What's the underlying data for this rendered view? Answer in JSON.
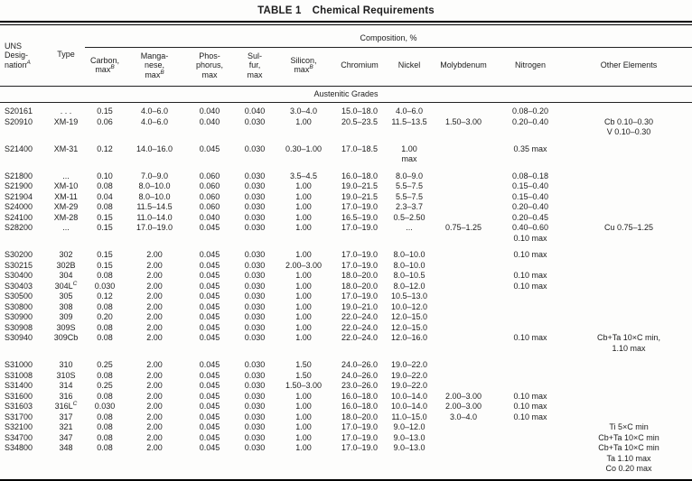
{
  "title": {
    "label": "TABLE 1",
    "text": "Chemical Requirements"
  },
  "composition_header": "Composition, %",
  "section_header": "Austenitic Grades",
  "columns": {
    "uns": {
      "l1": "UNS",
      "l2": "Desig-",
      "l3": "nation",
      "sup": "A"
    },
    "type": {
      "l1": "Type"
    },
    "carbon": {
      "l1": "Carbon,",
      "l2": "max",
      "sup": "B"
    },
    "manganese": {
      "l1": "Manga-",
      "l2": "nese,",
      "l3": "max",
      "sup": "B"
    },
    "phosphorus": {
      "l1": "Phos-",
      "l2": "phorus,",
      "l3": "max"
    },
    "sulfur": {
      "l1": "Sul-",
      "l2": "fur,",
      "l3": "max"
    },
    "silicon": {
      "l1": "Silicon,",
      "l2": "max",
      "sup": "B"
    },
    "chromium": {
      "l1": "Chromium"
    },
    "nickel": {
      "l1": "Nickel"
    },
    "molybdenum": {
      "l1": "Molybdenum"
    },
    "nitrogen": {
      "l1": "Nitrogen"
    },
    "other": {
      "l1": "Other Elements"
    }
  },
  "rows": [
    {
      "uns": "S20161",
      "type": ". . .",
      "c": "0.15",
      "mn": "4.0–6.0",
      "p": "0.040",
      "s": "0.040",
      "si": "3.0–4.0",
      "cr": "15.0–18.0",
      "ni": "4.0–6.0",
      "mo": "",
      "n": "0.08–0.20",
      "other": "",
      "gap": false
    },
    {
      "uns": "S20910",
      "type": "XM-19",
      "c": "0.06",
      "mn": "4.0–6.0",
      "p": "0.040",
      "s": "0.030",
      "si": "1.00",
      "cr": "20.5–23.5",
      "ni": "11.5–13.5",
      "mo": "1.50–3.00",
      "n": "0.20–0.40",
      "other": "Cb 0.10–0.30\nV 0.10–0.30",
      "gap": false
    },
    {
      "uns": "S21400",
      "type": "XM-31",
      "c": "0.12",
      "mn": "14.0–16.0",
      "p": "0.045",
      "s": "0.030",
      "si": "0.30–1.00",
      "cr": "17.0–18.5",
      "ni": "1.00\nmax",
      "mo": "",
      "n": "0.35 max",
      "other": "",
      "gap": true
    },
    {
      "uns": "S21800",
      "type": "...",
      "c": "0.10",
      "mn": "7.0–9.0",
      "p": "0.060",
      "s": "0.030",
      "si": "3.5–4.5",
      "cr": "16.0–18.0",
      "ni": "8.0–9.0",
      "mo": "",
      "n": "0.08–0.18",
      "other": "",
      "gap": true
    },
    {
      "uns": "S21900",
      "type": "XM-10",
      "c": "0.08",
      "mn": "8.0–10.0",
      "p": "0.060",
      "s": "0.030",
      "si": "1.00",
      "cr": "19.0–21.5",
      "ni": "5.5–7.5",
      "mo": "",
      "n": "0.15–0.40",
      "other": "",
      "gap": false
    },
    {
      "uns": "S21904",
      "type": "XM-11",
      "c": "0.04",
      "mn": "8.0–10.0",
      "p": "0.060",
      "s": "0.030",
      "si": "1.00",
      "cr": "19.0–21.5",
      "ni": "5.5–7.5",
      "mo": "",
      "n": "0.15–0.40",
      "other": "",
      "gap": false
    },
    {
      "uns": "S24000",
      "type": "XM-29",
      "c": "0.08",
      "mn": "11.5–14.5",
      "p": "0.060",
      "s": "0.030",
      "si": "1.00",
      "cr": "17.0–19.0",
      "ni": "2.3–3.7",
      "mo": "",
      "n": "0.20–0.40",
      "other": "",
      "gap": false
    },
    {
      "uns": "S24100",
      "type": "XM-28",
      "c": "0.15",
      "mn": "11.0–14.0",
      "p": "0.040",
      "s": "0.030",
      "si": "1.00",
      "cr": "16.5–19.0",
      "ni": "0.5–2.50",
      "mo": "",
      "n": "0.20–0.45",
      "other": "",
      "gap": false
    },
    {
      "uns": "S28200",
      "type": "...",
      "c": "0.15",
      "mn": "17.0–19.0",
      "p": "0.045",
      "s": "0.030",
      "si": "1.00",
      "cr": "17.0–19.0",
      "ni": "...",
      "mo": "0.75–1.25",
      "n": "0.40–0.60\n0.10 max",
      "other": "Cu 0.75–1.25",
      "gap": false
    },
    {
      "uns": "S30200",
      "type": "302",
      "c": "0.15",
      "mn": "2.00",
      "p": "0.045",
      "s": "0.030",
      "si": "1.00",
      "cr": "17.0–19.0",
      "ni": "8.0–10.0",
      "mo": "",
      "n": "0.10 max",
      "other": "",
      "gap": true
    },
    {
      "uns": "S30215",
      "type": "302B",
      "c": "0.15",
      "mn": "2.00",
      "p": "0.045",
      "s": "0.030",
      "si": "2.00–3.00",
      "cr": "17.0–19.0",
      "ni": "8.0–10.0",
      "mo": "",
      "n": "",
      "other": "",
      "gap": false
    },
    {
      "uns": "S30400",
      "type": "304",
      "c": "0.08",
      "mn": "2.00",
      "p": "0.045",
      "s": "0.030",
      "si": "1.00",
      "cr": "18.0–20.0",
      "ni": "8.0–10.5",
      "mo": "",
      "n": "0.10 max",
      "other": "",
      "gap": false
    },
    {
      "uns": "S30403",
      "type": "304L",
      "type_sup": "C",
      "c": "0.030",
      "mn": "2.00",
      "p": "0.045",
      "s": "0.030",
      "si": "1.00",
      "cr": "18.0–20.0",
      "ni": "8.0–12.0",
      "mo": "",
      "n": "0.10 max",
      "other": "",
      "gap": false
    },
    {
      "uns": "S30500",
      "type": "305",
      "c": "0.12",
      "mn": "2.00",
      "p": "0.045",
      "s": "0.030",
      "si": "1.00",
      "cr": "17.0–19.0",
      "ni": "10.5–13.0",
      "mo": "",
      "n": "",
      "other": "",
      "gap": false
    },
    {
      "uns": "S30800",
      "type": "308",
      "c": "0.08",
      "mn": "2.00",
      "p": "0.045",
      "s": "0.030",
      "si": "1.00",
      "cr": "19.0–21.0",
      "ni": "10.0–12.0",
      "mo": "",
      "n": "",
      "other": "",
      "gap": false
    },
    {
      "uns": "S30900",
      "type": "309",
      "c": "0.20",
      "mn": "2.00",
      "p": "0.045",
      "s": "0.030",
      "si": "1.00",
      "cr": "22.0–24.0",
      "ni": "12.0–15.0",
      "mo": "",
      "n": "",
      "other": "",
      "gap": false
    },
    {
      "uns": "S30908",
      "type": "309S",
      "c": "0.08",
      "mn": "2.00",
      "p": "0.045",
      "s": "0.030",
      "si": "1.00",
      "cr": "22.0–24.0",
      "ni": "12.0–15.0",
      "mo": "",
      "n": "",
      "other": "",
      "gap": false
    },
    {
      "uns": "S30940",
      "type": "309Cb",
      "c": "0.08",
      "mn": "2.00",
      "p": "0.045",
      "s": "0.030",
      "si": "1.00",
      "cr": "22.0–24.0",
      "ni": "12.0–16.0",
      "mo": "",
      "n": "0.10 max",
      "other": "Cb+Ta 10×C min,\n1.10 max",
      "gap": false
    },
    {
      "uns": "S31000",
      "type": "310",
      "c": "0.25",
      "mn": "2.00",
      "p": "0.045",
      "s": "0.030",
      "si": "1.50",
      "cr": "24.0–26.0",
      "ni": "19.0–22.0",
      "mo": "",
      "n": "",
      "other": "",
      "gap": true
    },
    {
      "uns": "S31008",
      "type": "310S",
      "c": "0.08",
      "mn": "2.00",
      "p": "0.045",
      "s": "0.030",
      "si": "1.50",
      "cr": "24.0–26.0",
      "ni": "19.0–22.0",
      "mo": "",
      "n": "",
      "other": "",
      "gap": false
    },
    {
      "uns": "S31400",
      "type": "314",
      "c": "0.25",
      "mn": "2.00",
      "p": "0.045",
      "s": "0.030",
      "si": "1.50–3.00",
      "cr": "23.0–26.0",
      "ni": "19.0–22.0",
      "mo": "",
      "n": "",
      "other": "",
      "gap": false
    },
    {
      "uns": "S31600",
      "type": "316",
      "c": "0.08",
      "mn": "2.00",
      "p": "0.045",
      "s": "0.030",
      "si": "1.00",
      "cr": "16.0–18.0",
      "ni": "10.0–14.0",
      "mo": "2.00–3.00",
      "n": "0.10 max",
      "other": "",
      "gap": false
    },
    {
      "uns": "S31603",
      "type": "316L",
      "type_sup": "C",
      "c": "0.030",
      "mn": "2.00",
      "p": "0.045",
      "s": "0.030",
      "si": "1.00",
      "cr": "16.0–18.0",
      "ni": "10.0–14.0",
      "mo": "2.00–3.00",
      "n": "0.10 max",
      "other": "",
      "gap": false
    },
    {
      "uns": "S31700",
      "type": "317",
      "c": "0.08",
      "mn": "2.00",
      "p": "0.045",
      "s": "0.030",
      "si": "1.00",
      "cr": "18.0–20.0",
      "ni": "11.0–15.0",
      "mo": "3.0–4.0",
      "n": "0.10 max",
      "other": "",
      "gap": false
    },
    {
      "uns": "S32100",
      "type": "321",
      "c": "0.08",
      "mn": "2.00",
      "p": "0.045",
      "s": "0.030",
      "si": "1.00",
      "cr": "17.0–19.0",
      "ni": "9.0–12.0",
      "mo": "",
      "n": "",
      "other": "Ti 5×C min",
      "gap": false
    },
    {
      "uns": "S34700",
      "type": "347",
      "c": "0.08",
      "mn": "2.00",
      "p": "0.045",
      "s": "0.030",
      "si": "1.00",
      "cr": "17.0–19.0",
      "ni": "9.0–13.0",
      "mo": "",
      "n": "",
      "other": "Cb+Ta 10×C min",
      "gap": false
    },
    {
      "uns": "S34800",
      "type": "348",
      "c": "0.08",
      "mn": "2.00",
      "p": "0.045",
      "s": "0.030",
      "si": "1.00",
      "cr": "17.0–19.0",
      "ni": "9.0–13.0",
      "mo": "",
      "n": "",
      "other": "Cb+Ta 10×C min\nTa 1.10 max\nCo 0.20 max",
      "gap": false
    }
  ]
}
